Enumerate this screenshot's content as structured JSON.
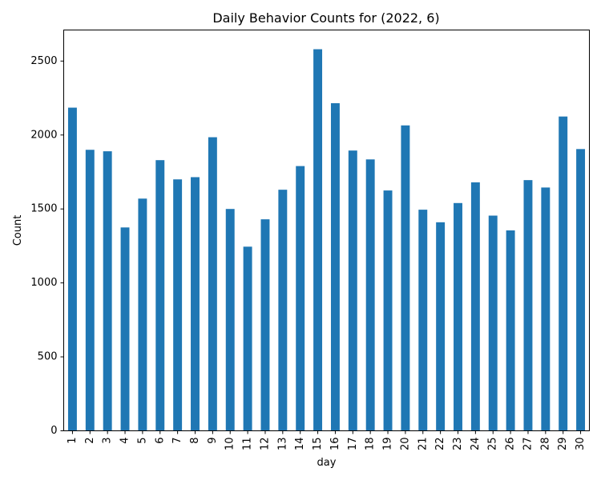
{
  "chart_data": {
    "type": "bar",
    "title": "Daily Behavior Counts for (2022, 6)",
    "xlabel": "day",
    "ylabel": "Count",
    "ylim": [
      0,
      2710
    ],
    "yticks": [
      0,
      500,
      1000,
      1500,
      2000,
      2500
    ],
    "grid": false,
    "legend": "none",
    "bar_color": "#1f77b4",
    "categories": [
      "1",
      "2",
      "3",
      "4",
      "5",
      "6",
      "7",
      "8",
      "9",
      "10",
      "11",
      "12",
      "13",
      "14",
      "15",
      "16",
      "17",
      "18",
      "19",
      "20",
      "21",
      "22",
      "23",
      "24",
      "25",
      "26",
      "27",
      "28",
      "29",
      "30"
    ],
    "values": [
      2185,
      1900,
      1890,
      1375,
      1570,
      1830,
      1700,
      1715,
      1985,
      1500,
      1245,
      1430,
      1630,
      1790,
      2580,
      2215,
      1895,
      1835,
      1625,
      2065,
      1495,
      1410,
      1540,
      1680,
      1455,
      1355,
      1695,
      1645,
      2125,
      1905
    ]
  }
}
